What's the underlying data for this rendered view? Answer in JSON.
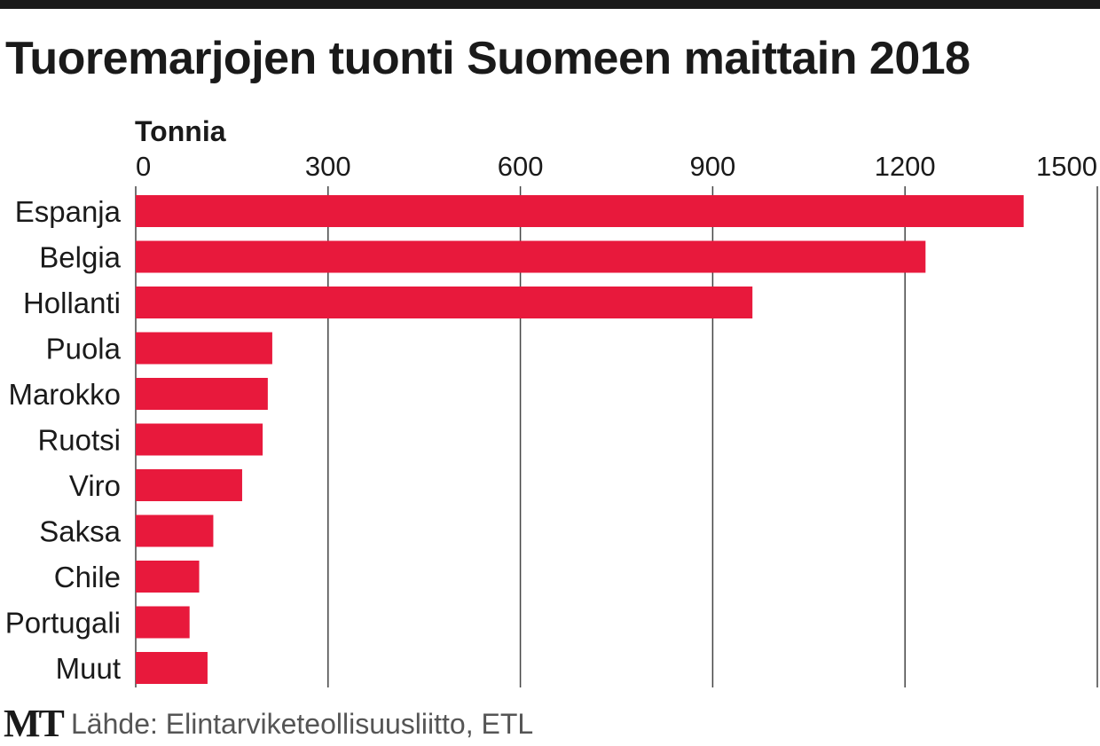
{
  "colors": {
    "bar": "#e8193c",
    "text": "#1a1a1a",
    "grid": "#444444",
    "source": "#555555"
  },
  "footer": {
    "logo": "MT",
    "source": "Lähde: Elintarviketeollisuusliitto, ETL"
  },
  "chart_data": {
    "type": "bar",
    "orientation": "horizontal",
    "title": "Tuoremarjojen tuonti Suomeen maittain 2018",
    "xlabel": "Tonnia",
    "ylabel": "",
    "xlim": [
      0,
      1500
    ],
    "ticks": [
      0,
      300,
      600,
      900,
      1200,
      1500
    ],
    "tick_labels": [
      "0",
      "300",
      "600",
      "900",
      "1200",
      "1500"
    ],
    "categories": [
      "Espanja",
      "Belgia",
      "Hollanti",
      "Puola",
      "Marokko",
      "Ruotsi",
      "Viro",
      "Saksa",
      "Chile",
      "Portugali",
      "Muut"
    ],
    "values": [
      1385,
      1232,
      962,
      213,
      206,
      198,
      166,
      121,
      99,
      84,
      112
    ],
    "grid": true,
    "legend": "none"
  }
}
